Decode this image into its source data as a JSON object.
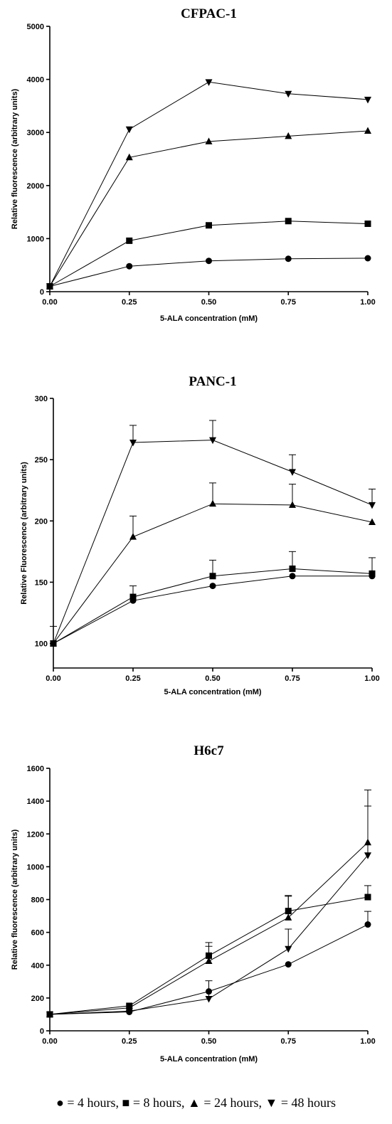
{
  "chart_data": [
    {
      "type": "line",
      "title": "CFPAC-1",
      "xlabel": "5-ALA concentration (mM)",
      "ylabel": "Relative fluorescence (arbitrary units)",
      "x": [
        0.0,
        0.25,
        0.5,
        0.75,
        1.0
      ],
      "xticks": [
        "0.00",
        "0.25",
        "0.50",
        "0.75",
        "1.00"
      ],
      "yticks": [
        0,
        1000,
        2000,
        3000,
        4000,
        5000
      ],
      "xlim": [
        0,
        1
      ],
      "ylim": [
        0,
        5000
      ],
      "series": [
        {
          "marker": "circle",
          "values": [
            100,
            480,
            580,
            620,
            630
          ]
        },
        {
          "marker": "square",
          "values": [
            100,
            960,
            1250,
            1330,
            1280
          ]
        },
        {
          "marker": "triangle-up",
          "values": [
            100,
            2530,
            2830,
            2930,
            3030
          ]
        },
        {
          "marker": "triangle-down",
          "values": [
            100,
            3060,
            3950,
            3730,
            3620
          ]
        }
      ]
    },
    {
      "type": "line",
      "title": "PANC-1",
      "xlabel": "5-ALA concentration (mM)",
      "ylabel": "Relative Fluorescence (arbitrary units)",
      "x": [
        0.0,
        0.25,
        0.5,
        0.75,
        1.0
      ],
      "xticks": [
        "0.00",
        "0.25",
        "0.50",
        "0.75",
        "1.00"
      ],
      "yticks": [
        100,
        150,
        200,
        250,
        300
      ],
      "xlim": [
        0,
        1
      ],
      "ylim": [
        80,
        300
      ],
      "series": [
        {
          "marker": "circle",
          "values": [
            100,
            135,
            147,
            155,
            155
          ],
          "err": [
            0,
            0,
            0,
            0,
            0
          ]
        },
        {
          "marker": "square",
          "values": [
            100,
            138,
            155,
            161,
            157
          ],
          "err": [
            0,
            9,
            13,
            14,
            13
          ]
        },
        {
          "marker": "triangle-up",
          "values": [
            100,
            187,
            214,
            213,
            199
          ],
          "err": [
            14,
            17,
            17,
            17,
            0
          ]
        },
        {
          "marker": "triangle-down",
          "values": [
            100,
            264,
            266,
            240,
            213
          ],
          "err": [
            0,
            14,
            16,
            14,
            13
          ]
        }
      ]
    },
    {
      "type": "line",
      "title": "H6c7",
      "xlabel": "5-ALA concentration (mM)",
      "ylabel": "Relative fluorescence (arbitrary units)",
      "x": [
        0.0,
        0.25,
        0.5,
        0.75,
        1.0
      ],
      "xticks": [
        "0.00",
        "0.25",
        "0.50",
        "0.75",
        "1.00"
      ],
      "yticks": [
        0,
        200,
        400,
        600,
        800,
        1000,
        1200,
        1400,
        1600
      ],
      "xlim": [
        0,
        1
      ],
      "ylim": [
        0,
        1600
      ],
      "series": [
        {
          "marker": "circle",
          "values": [
            100,
            115,
            240,
            405,
            648
          ],
          "err": [
            0,
            0,
            0,
            0,
            80
          ]
        },
        {
          "marker": "square",
          "values": [
            100,
            152,
            458,
            730,
            815
          ],
          "err": [
            0,
            0,
            80,
            95,
            70
          ]
        },
        {
          "marker": "triangle-up",
          "values": [
            100,
            140,
            425,
            690,
            1148
          ],
          "err": [
            0,
            0,
            90,
            130,
            320
          ]
        },
        {
          "marker": "triangle-down",
          "values": [
            100,
            120,
            195,
            500,
            1070
          ],
          "err": [
            0,
            0,
            110,
            120,
            300
          ]
        }
      ]
    }
  ],
  "legend": {
    "items": [
      {
        "symbol": "●",
        "text": " = 4 hours,"
      },
      {
        "symbol": "■",
        "text": " = 8 hours,"
      },
      {
        "symbol": "▲",
        "text": " = 24 hours,"
      },
      {
        "symbol": "▼",
        "text": " = 48 hours"
      }
    ]
  }
}
